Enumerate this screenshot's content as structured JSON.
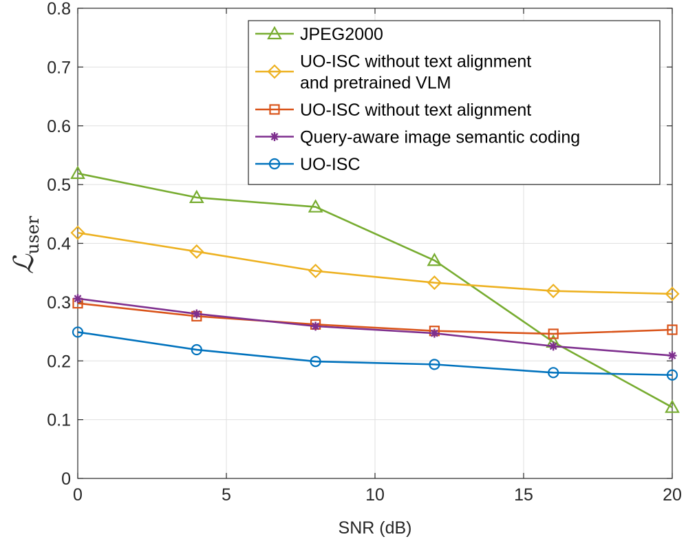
{
  "chart_data": {
    "type": "line",
    "title": "",
    "xlabel": "SNR (dB)",
    "ylabel": {
      "symbol": "ℒ",
      "subscript": "user"
    },
    "xlim": [
      0,
      20
    ],
    "ylim": [
      0,
      0.8
    ],
    "xticks": [
      0,
      5,
      10,
      15,
      20
    ],
    "yticks": [
      0,
      0.1,
      0.2,
      0.3,
      0.4,
      0.5,
      0.6,
      0.7,
      0.8
    ],
    "xtick_labels": [
      "0",
      "5",
      "10",
      "15",
      "20"
    ],
    "ytick_labels": [
      "0",
      "0.1",
      "0.2",
      "0.3",
      "0.4",
      "0.5",
      "0.6",
      "0.7",
      "0.8"
    ],
    "grid": true,
    "legend_position": "top-right",
    "x": [
      0,
      4,
      8,
      12,
      16,
      20
    ],
    "series": [
      {
        "name": "JPEG2000",
        "legend_lines": [
          "JPEG2000"
        ],
        "color": "#77AC30",
        "marker": "triangle",
        "values": [
          0.519,
          0.478,
          0.462,
          0.371,
          0.232,
          0.121
        ]
      },
      {
        "name": "UO-ISC without text alignment and pretrained VLM",
        "legend_lines": [
          "UO-ISC without text alignment",
          "and pretrained VLM"
        ],
        "color": "#EDB120",
        "marker": "diamond",
        "values": [
          0.418,
          0.386,
          0.353,
          0.333,
          0.319,
          0.314
        ]
      },
      {
        "name": "UO-ISC without text alignment",
        "legend_lines": [
          "UO-ISC without text alignment"
        ],
        "color": "#D95319",
        "marker": "square",
        "values": [
          0.298,
          0.276,
          0.262,
          0.251,
          0.246,
          0.253
        ]
      },
      {
        "name": "Query-aware image semantic coding",
        "legend_lines": [
          "Query-aware image semantic coding"
        ],
        "color": "#7E2F8E",
        "marker": "asterisk",
        "values": [
          0.306,
          0.28,
          0.259,
          0.247,
          0.225,
          0.209
        ]
      },
      {
        "name": "UO-ISC",
        "legend_lines": [
          "UO-ISC"
        ],
        "color": "#0072BD",
        "marker": "circle",
        "values": [
          0.249,
          0.219,
          0.199,
          0.194,
          0.18,
          0.176
        ]
      }
    ]
  }
}
